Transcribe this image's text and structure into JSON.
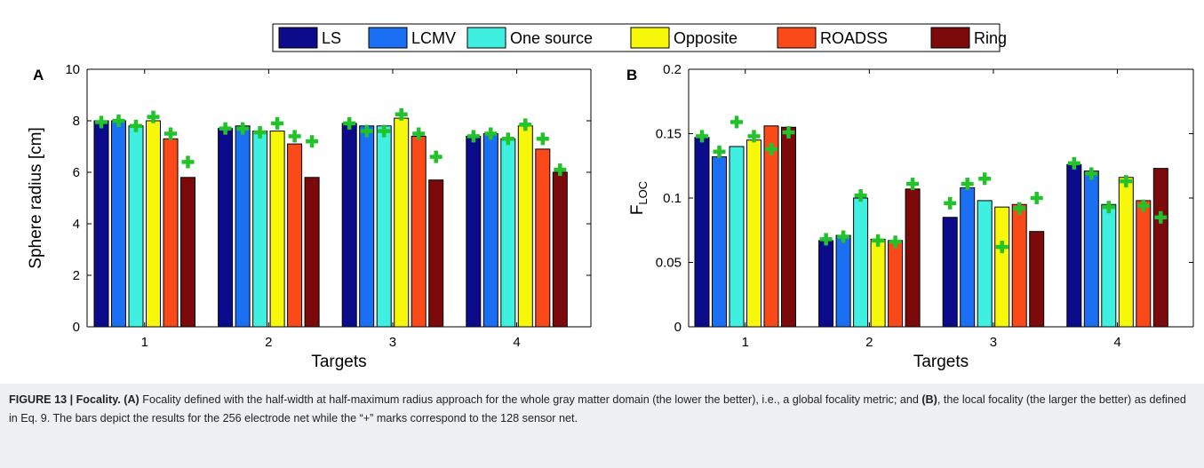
{
  "legend": [
    {
      "name": "LS",
      "color": "#0b0b8c"
    },
    {
      "name": "LCMV",
      "color": "#1a6ff2"
    },
    {
      "name": "One source",
      "color": "#3fefe0"
    },
    {
      "name": "Opposite",
      "color": "#f7f70a"
    },
    {
      "name": "ROADSS",
      "color": "#fb4a1a"
    },
    {
      "name": "Ring",
      "color": "#7c0a0a"
    }
  ],
  "marker_color": "#22c22a",
  "chart_data": [
    {
      "type": "bar",
      "panel": "A",
      "categories": [
        "1",
        "2",
        "3",
        "4"
      ],
      "xlabel": "Targets",
      "ylabel": "Sphere radius [cm]",
      "ylim": [
        0,
        10
      ],
      "yticks": [
        "0",
        "2",
        "4",
        "6",
        "8",
        "10"
      ],
      "yticks_values": [
        0,
        2,
        4,
        6,
        8,
        10
      ],
      "series": [
        {
          "name": "LS",
          "values": [
            8.0,
            7.7,
            7.9,
            7.4
          ],
          "markers": [
            7.95,
            7.7,
            7.9,
            7.4
          ]
        },
        {
          "name": "LCMV",
          "values": [
            8.0,
            7.8,
            7.8,
            7.5
          ],
          "markers": [
            8.0,
            7.7,
            7.6,
            7.5
          ]
        },
        {
          "name": "One source",
          "values": [
            7.8,
            7.6,
            7.8,
            7.3
          ],
          "markers": [
            7.8,
            7.55,
            7.6,
            7.3
          ]
        },
        {
          "name": "Opposite",
          "values": [
            8.0,
            7.6,
            8.1,
            7.8
          ],
          "markers": [
            8.15,
            7.9,
            8.25,
            7.85
          ]
        },
        {
          "name": "ROADSS",
          "values": [
            7.3,
            7.1,
            7.4,
            6.9
          ],
          "markers": [
            7.5,
            7.4,
            7.5,
            7.3
          ]
        },
        {
          "name": "Ring",
          "values": [
            5.8,
            5.8,
            5.7,
            6.0
          ],
          "markers": [
            6.4,
            7.2,
            6.6,
            6.1
          ]
        }
      ]
    },
    {
      "type": "bar",
      "panel": "B",
      "categories": [
        "1",
        "2",
        "3",
        "4"
      ],
      "xlabel": "Targets",
      "ylabel": "F",
      "ylabel_sub": "LOC",
      "ylim": [
        0,
        0.2
      ],
      "yticks": [
        "0",
        "0.05",
        "0.1",
        "0.15",
        "0.2"
      ],
      "yticks_values": [
        0,
        0.05,
        0.1,
        0.15,
        0.2
      ],
      "series": [
        {
          "name": "LS",
          "values": [
            0.147,
            0.067,
            0.085,
            0.126
          ],
          "markers": [
            0.148,
            0.068,
            0.096,
            0.127
          ]
        },
        {
          "name": "LCMV",
          "values": [
            0.132,
            0.071,
            0.108,
            0.121
          ],
          "markers": [
            0.136,
            0.07,
            0.111,
            0.119
          ]
        },
        {
          "name": "One source",
          "values": [
            0.14,
            0.1,
            0.098,
            0.095
          ],
          "markers": [
            0.159,
            0.102,
            0.115,
            0.093
          ]
        },
        {
          "name": "Opposite",
          "values": [
            0.145,
            0.068,
            0.093,
            0.116
          ],
          "markers": [
            0.148,
            0.067,
            0.062,
            0.113
          ]
        },
        {
          "name": "ROADSS",
          "values": [
            0.156,
            0.067,
            0.095,
            0.098
          ],
          "markers": [
            0.138,
            0.066,
            0.092,
            0.094
          ]
        },
        {
          "name": "Ring",
          "values": [
            0.155,
            0.107,
            0.074,
            0.123
          ],
          "markers": [
            0.151,
            0.111,
            0.1,
            0.085
          ]
        }
      ]
    }
  ],
  "caption": {
    "label": "FIGURE 13 | Focality.",
    "part_a_tag": "(A)",
    "part_a_text": "Focality defined with the half-width at half-maximum radius approach for the whole gray matter domain (the lower the better), i.e., a global focality metric; and",
    "part_b_tag": "(B)",
    "part_b_text": ", the local focality (the larger the better) as defined in Eq. 9. The bars depict the results for the 256 electrode net while the “+” marks correspond to the 128 sensor net."
  }
}
